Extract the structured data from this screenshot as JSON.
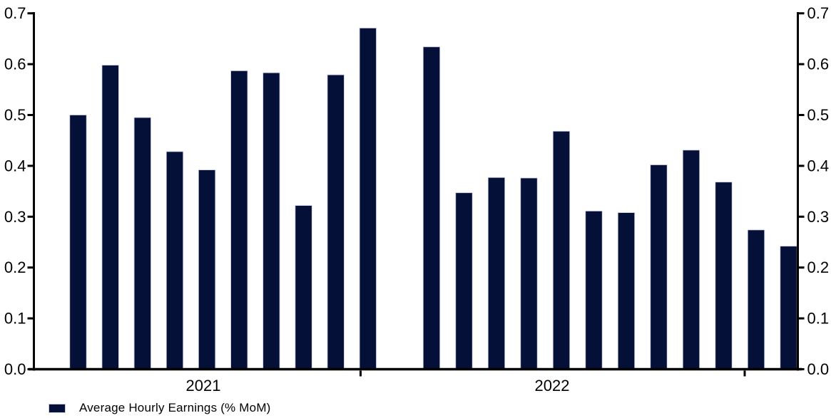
{
  "chart_data": {
    "type": "bar",
    "title": "",
    "legend_position": "bottom-left",
    "grid": false,
    "y_axis_sides": "both",
    "ylim": [
      0.0,
      0.7
    ],
    "y_tick_step": 0.1,
    "y_tick_labels": [
      "0.0",
      "0.1",
      "0.2",
      "0.3",
      "0.4",
      "0.5",
      "0.6",
      "0.7"
    ],
    "x_year_labels": [
      "2021",
      "2022"
    ],
    "x_slot_count": 23,
    "x_empty_slot_index": 10,
    "series": [
      {
        "name": "Average Hourly Earnings (% MoM)",
        "color": "#041037",
        "values": [
          0.5,
          0.598,
          0.495,
          0.428,
          0.392,
          0.587,
          0.583,
          0.322,
          0.579,
          0.671,
          null,
          0.634,
          0.347,
          0.377,
          0.376,
          0.468,
          0.311,
          0.308,
          0.402,
          0.431,
          0.368,
          0.274,
          0.242
        ]
      }
    ]
  },
  "colors": {
    "axis": "#000000",
    "bar_outline": "#c7cadd",
    "background": "#ffffff"
  }
}
